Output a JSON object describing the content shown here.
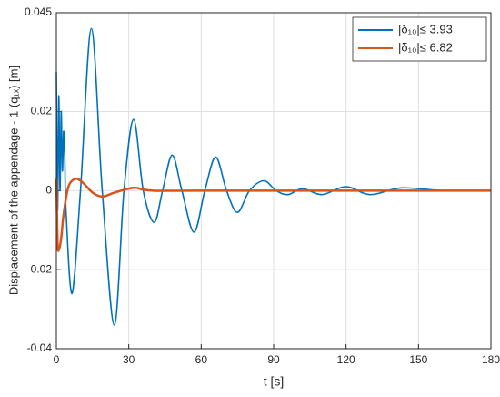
{
  "chart_data": {
    "type": "line",
    "xlabel": "t [s]",
    "ylabel": "Displacement of the appendage - 1 (q₁ₓ) [m]",
    "xlim": [
      0,
      180
    ],
    "xticks": [
      0,
      30,
      60,
      90,
      120,
      150,
      180
    ],
    "ylim": [
      -0.04,
      0.045
    ],
    "yticks": [
      -0.04,
      -0.02,
      0,
      0.02,
      0.045
    ],
    "grid": true,
    "legend": "upper right",
    "series": [
      {
        "name": "|δ₁₀|≤ 3.93",
        "color": "#0072bd",
        "x": [
          0,
          0.5,
          1,
          1.5,
          2,
          2.5,
          3,
          3.5,
          4,
          6.5,
          10,
          14.5,
          19,
          24,
          28,
          32,
          36,
          40.5,
          44,
          48,
          52,
          57,
          61.5,
          66,
          70.5,
          75,
          80,
          86,
          91,
          96,
          102,
          110,
          120,
          130,
          143,
          160,
          180
        ],
        "values": [
          0.03,
          -0.005,
          0.024,
          0.0,
          0.02,
          0.005,
          0.015,
          0.008,
          -0.005,
          -0.026,
          0.0,
          0.041,
          0.0,
          -0.034,
          0.0,
          0.018,
          0.0,
          -0.008,
          0.0,
          0.009,
          0.0,
          -0.0105,
          0.0,
          0.0085,
          0.0,
          -0.0055,
          0.0,
          0.0025,
          0.0,
          -0.001,
          0.0005,
          -0.001,
          0.001,
          -0.001,
          0.0007,
          0.0,
          0.0
        ]
      },
      {
        "name": "|δ₁₀|≤ 6.82",
        "color": "#d95319",
        "x": [
          0,
          0.5,
          1,
          2,
          3,
          5,
          8,
          11,
          15,
          19,
          24,
          30,
          33,
          40,
          60,
          180
        ],
        "values": [
          0.003,
          -0.013,
          -0.015,
          -0.012,
          -0.006,
          0.001,
          0.003,
          0.002,
          -0.0005,
          -0.0015,
          -0.0005,
          0.0005,
          0.0007,
          0.0,
          0.0,
          0.0
        ]
      }
    ]
  }
}
